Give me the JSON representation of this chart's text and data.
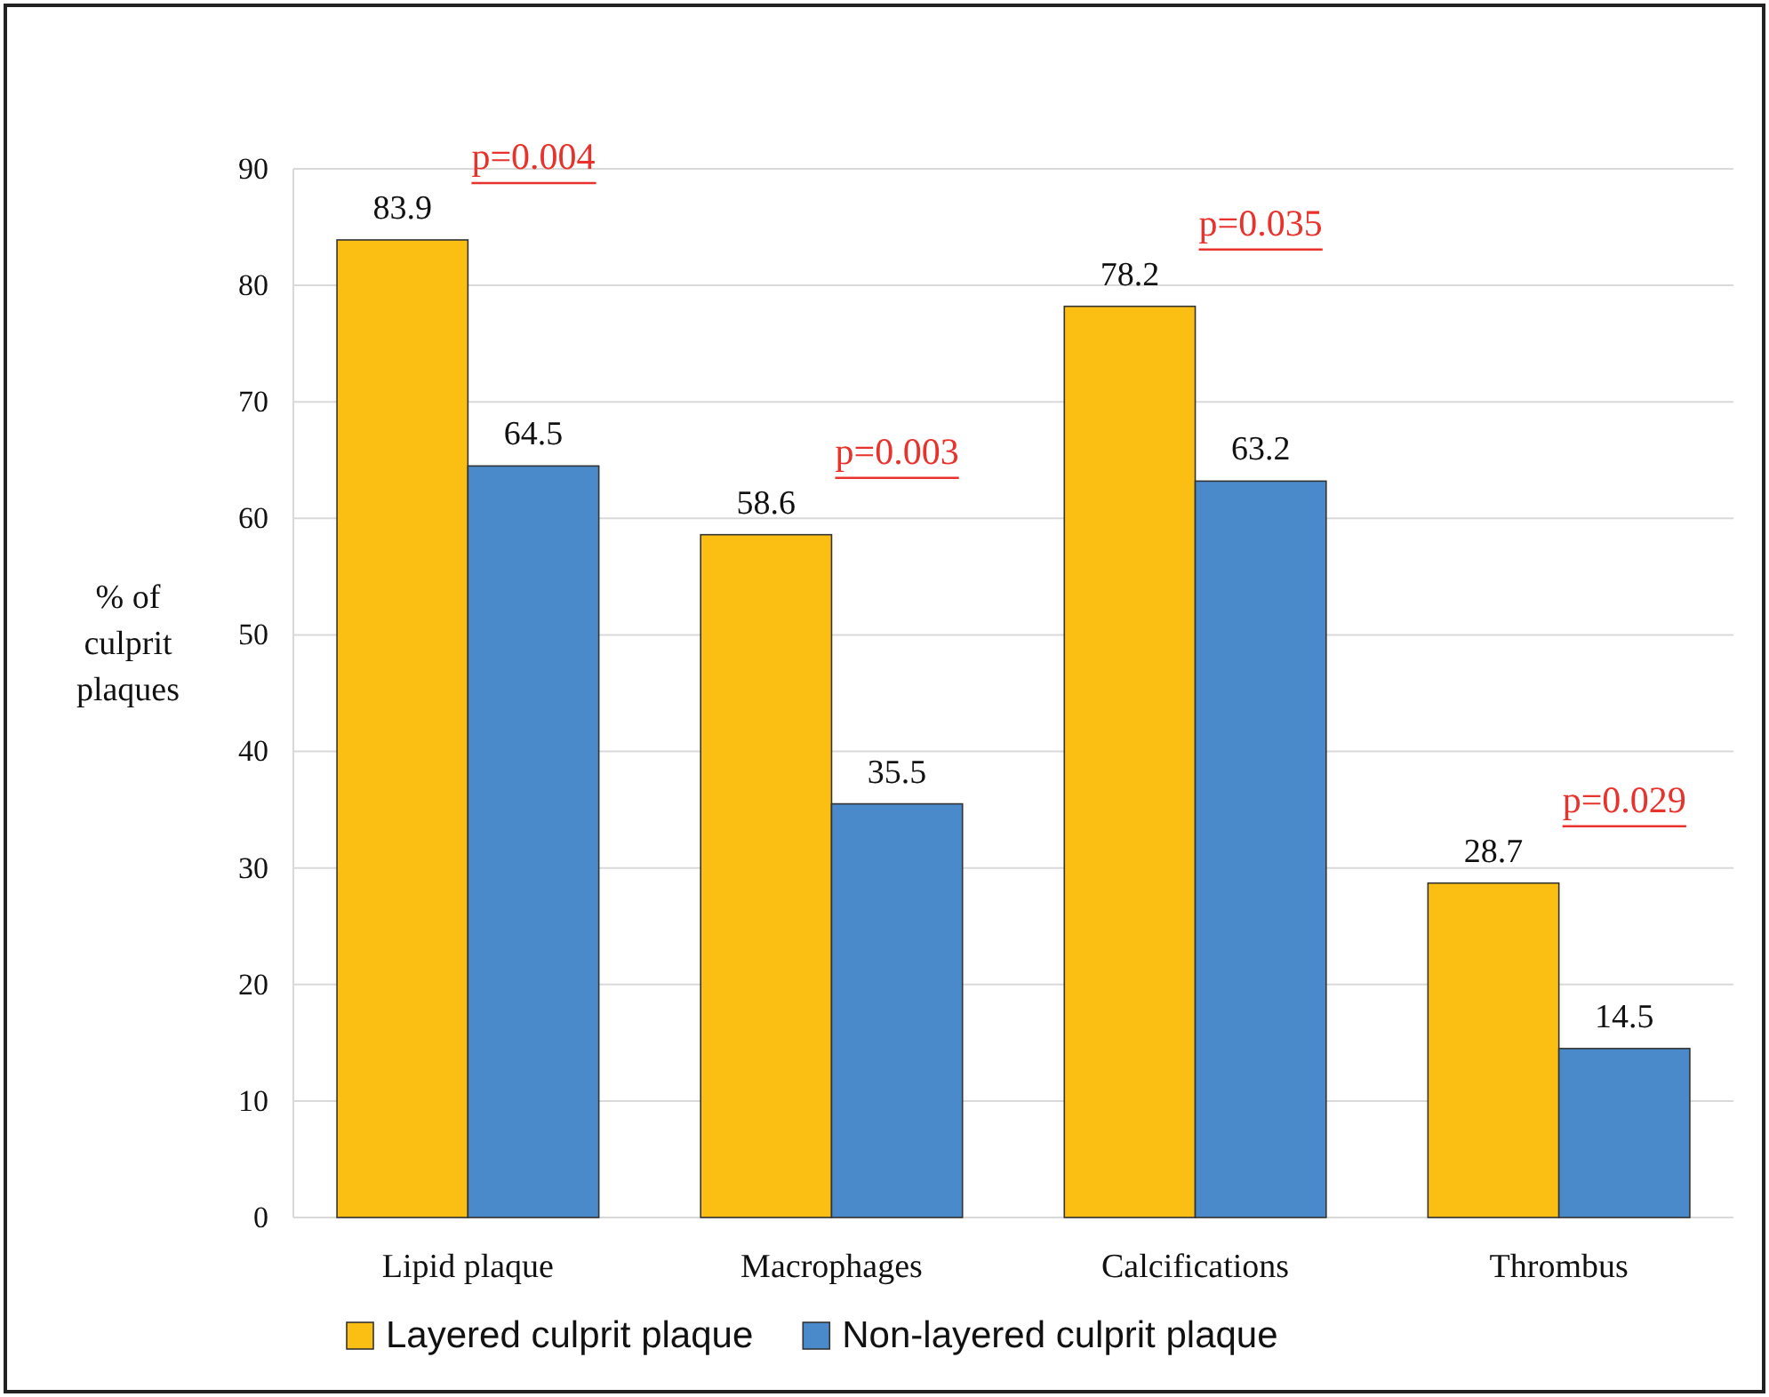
{
  "chart_data": {
    "type": "bar",
    "ylabel": "% of culprit plaques",
    "categories": [
      "Lipid plaque",
      "Macrophages",
      "Calcifications",
      "Thrombus"
    ],
    "series": [
      {
        "name": "Layered culprit plaque",
        "color": "#fbbf14",
        "values": [
          83.9,
          58.6,
          78.2,
          28.7
        ]
      },
      {
        "name": "Non-layered culprit plaque",
        "color": "#4a8acb",
        "values": [
          64.5,
          35.5,
          63.2,
          14.5
        ]
      }
    ],
    "ylim": [
      0,
      90
    ],
    "yticks": [
      0,
      10,
      20,
      30,
      40,
      50,
      60,
      70,
      80,
      90
    ],
    "grid": "y",
    "legend": "bottom",
    "data_labels": true,
    "annotations": [
      "p=0.004",
      "p=0.003",
      "p=0.035",
      "p=0.029"
    ]
  }
}
